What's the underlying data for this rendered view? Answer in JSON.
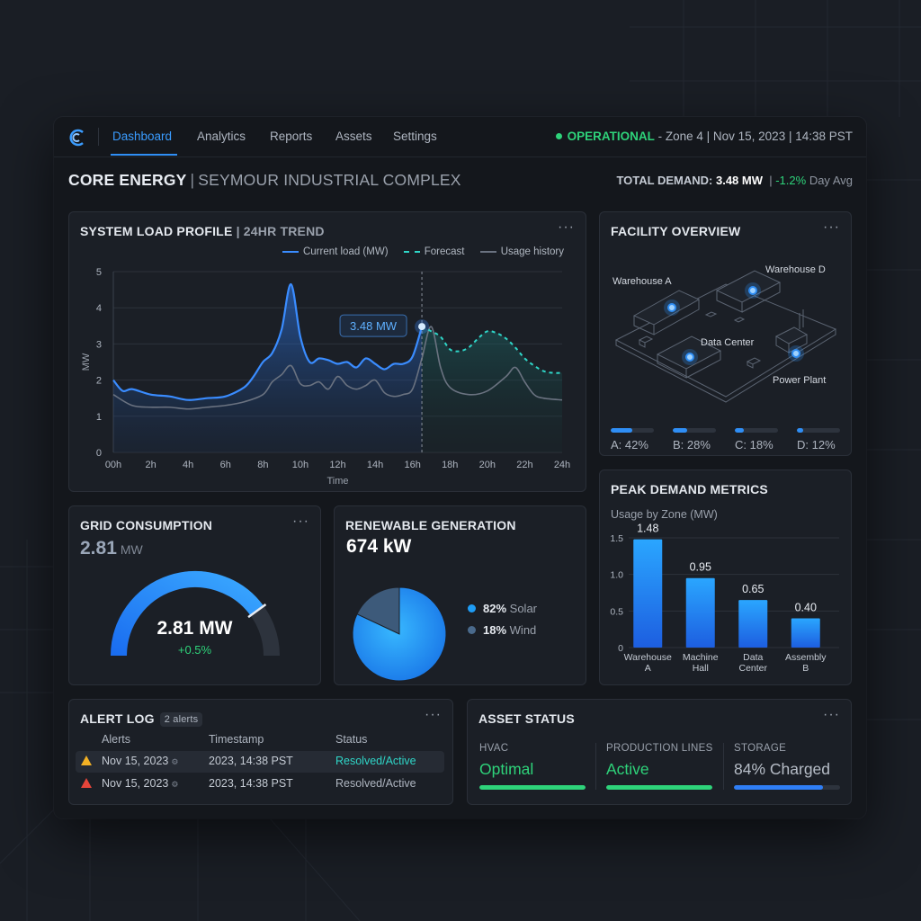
{
  "nav": {
    "tabs": [
      {
        "label": "Dashboard",
        "active": true
      },
      {
        "label": "Analytics"
      },
      {
        "label": "Reports"
      },
      {
        "label": "Assets"
      },
      {
        "label": "Settings"
      }
    ],
    "status_state": "OPERATIONAL",
    "status_detail": "- Zone 4 | Nov 15, 2023 | 14:38 PST"
  },
  "header": {
    "brand": "CORE ENERGY",
    "separator": "|",
    "location": "SEYMOUR INDUSTRIAL COMPLEX",
    "demand_label": "TOTAL DEMAND:",
    "demand_value": "3.48 MW",
    "demand_change": "-1.2%",
    "demand_suffix": "Day Avg"
  },
  "load_profile": {
    "title": "SYSTEM LOAD PROFILE",
    "subtitle": "| 24HR TREND",
    "legend": {
      "current": "Current load (MW)",
      "forecast": "Forecast",
      "history": "Usage history"
    },
    "callout": "3.48 MW"
  },
  "chart_data": [
    {
      "type": "line",
      "title": "SYSTEM LOAD PROFILE | 24HR TREND",
      "xlabel": "Time",
      "ylabel": "MW",
      "ylim": [
        0,
        5
      ],
      "xlim": [
        0,
        24
      ],
      "x_ticks": [
        "00h",
        "2h",
        "4h",
        "6h",
        "8h",
        "10h",
        "12h",
        "14h",
        "16h",
        "18h",
        "20h",
        "22h",
        "24h"
      ],
      "y_ticks": [
        "0",
        "1",
        "2",
        "3",
        "4",
        "5"
      ],
      "grid": true,
      "legend_position": "top-right",
      "series": [
        {
          "name": "Current load (MW)",
          "x": [
            0,
            0.5,
            1,
            2,
            3,
            4,
            5,
            6,
            7,
            7.5,
            8,
            8.5,
            9,
            9.5,
            10,
            10.5,
            11,
            11.5,
            12,
            12.5,
            13,
            13.5,
            14,
            14.5,
            15,
            15.5,
            16,
            16.5
          ],
          "y": [
            2.0,
            1.7,
            1.75,
            1.6,
            1.55,
            1.45,
            1.5,
            1.55,
            1.8,
            2.1,
            2.5,
            2.75,
            3.4,
            4.65,
            3.2,
            2.5,
            2.6,
            2.55,
            2.45,
            2.5,
            2.35,
            2.6,
            2.45,
            2.3,
            2.45,
            2.45,
            2.65,
            3.48
          ]
        },
        {
          "name": "Forecast",
          "x": [
            16.5,
            17,
            17.5,
            18,
            18.5,
            19,
            19.5,
            20,
            20.5,
            21,
            21.5,
            22,
            22.5,
            23,
            23.5,
            24
          ],
          "y": [
            3.48,
            3.35,
            3.2,
            2.85,
            2.8,
            2.9,
            3.15,
            3.35,
            3.3,
            3.15,
            2.9,
            2.6,
            2.4,
            2.25,
            2.2,
            2.2
          ]
        },
        {
          "name": "Usage history",
          "x": [
            0,
            1,
            2,
            3,
            4,
            5,
            6,
            7,
            8,
            8.5,
            9,
            9.5,
            10,
            10.5,
            11,
            11.5,
            12,
            12.5,
            13,
            13.5,
            14,
            14.5,
            15,
            15.5,
            16,
            16.5,
            17,
            17.5,
            18,
            19,
            20,
            21,
            21.5,
            22,
            22.5,
            23,
            24
          ],
          "y": [
            1.6,
            1.3,
            1.25,
            1.25,
            1.2,
            1.25,
            1.3,
            1.4,
            1.6,
            1.95,
            2.15,
            2.4,
            1.9,
            1.85,
            1.95,
            1.75,
            2.1,
            1.85,
            1.75,
            1.85,
            2.0,
            1.65,
            1.55,
            1.6,
            1.75,
            2.6,
            3.48,
            2.35,
            1.8,
            1.6,
            1.7,
            2.1,
            2.35,
            1.95,
            1.6,
            1.5,
            1.45
          ]
        }
      ],
      "annotations": [
        {
          "x": 16.5,
          "y": 3.48,
          "text": "3.48 MW"
        }
      ]
    },
    {
      "type": "pie",
      "title": "RENEWABLE GENERATION",
      "categories": [
        "Solar",
        "Wind"
      ],
      "values": [
        82,
        18
      ],
      "colors": [
        "#1e9cf5",
        "#3d5a7a"
      ]
    },
    {
      "type": "bar",
      "title": "PEAK DEMAND METRICS",
      "subtitle": "Usage by Zone (MW)",
      "categories": [
        "Warehouse A",
        "Machine Hall",
        "Data Center",
        "Assembly B"
      ],
      "values": [
        1.48,
        0.95,
        0.65,
        0.4
      ],
      "data_labels": [
        "1.48",
        "0.95",
        "0.65",
        "0.40"
      ],
      "ylim": [
        0,
        1.5
      ],
      "y_ticks": [
        "0",
        "0.5",
        "1.0",
        "1.5"
      ]
    }
  ],
  "facility": {
    "title": "FACILITY OVERVIEW",
    "labels": {
      "wa": "Warehouse A",
      "wd": "Warehouse D",
      "dc": "Data Center",
      "pp": "Power Plant"
    },
    "zones": [
      {
        "label": "A: 42%",
        "value": 0.42
      },
      {
        "label": "B: 28%",
        "value": 0.28
      },
      {
        "label": "C: 18%",
        "value": 0.18
      },
      {
        "label": "D: 12%",
        "value": 0.12
      }
    ]
  },
  "grid": {
    "title": "GRID CONSUMPTION",
    "value": "2.81",
    "unit": "MW",
    "gauge_value": "2.81 MW",
    "gauge_change": "+0.5%",
    "gauge_fraction": 0.8
  },
  "renewable": {
    "title": "RENEWABLE GENERATION",
    "value": "674 kW",
    "legend": [
      {
        "pct": "82%",
        "name": "Solar",
        "color": "#1e9cf5"
      },
      {
        "pct": "18%",
        "name": "Wind",
        "color": "#4a6a8c"
      }
    ]
  },
  "peak": {
    "title": "PEAK DEMAND METRICS",
    "subtitle": "Usage by Zone (MW)"
  },
  "alerts": {
    "title": "ALERT LOG",
    "badge": "2 alerts",
    "headers": [
      "Alerts",
      "Timestamp",
      "Status"
    ],
    "rows": [
      {
        "date": "Nov 15, 2023",
        "timestamp": "2023, 14:38 PST",
        "status": "Resolved/Active",
        "level": "warning"
      },
      {
        "date": "Nov 15, 2023",
        "timestamp": "2023, 14:38 PST",
        "status": "Resolved/Active",
        "level": "critical"
      }
    ]
  },
  "assets": {
    "title": "ASSET STATUS",
    "items": [
      {
        "label": "HVAC",
        "value": "Optimal",
        "fill": 1.0,
        "color": "#2ed37a"
      },
      {
        "label": "PRODUCTION LINES",
        "value": "Active",
        "fill": 1.0,
        "color": "#2ed37a"
      },
      {
        "label": "STORAGE",
        "value": "84% Charged",
        "fill": 0.84,
        "color": "#2f7ef5"
      }
    ]
  },
  "colors": {
    "accent": "#2f8ef5",
    "ok": "#2ed37a",
    "forecast": "#2fd6c8",
    "warning": "#f2b024",
    "critical": "#e5453a"
  }
}
